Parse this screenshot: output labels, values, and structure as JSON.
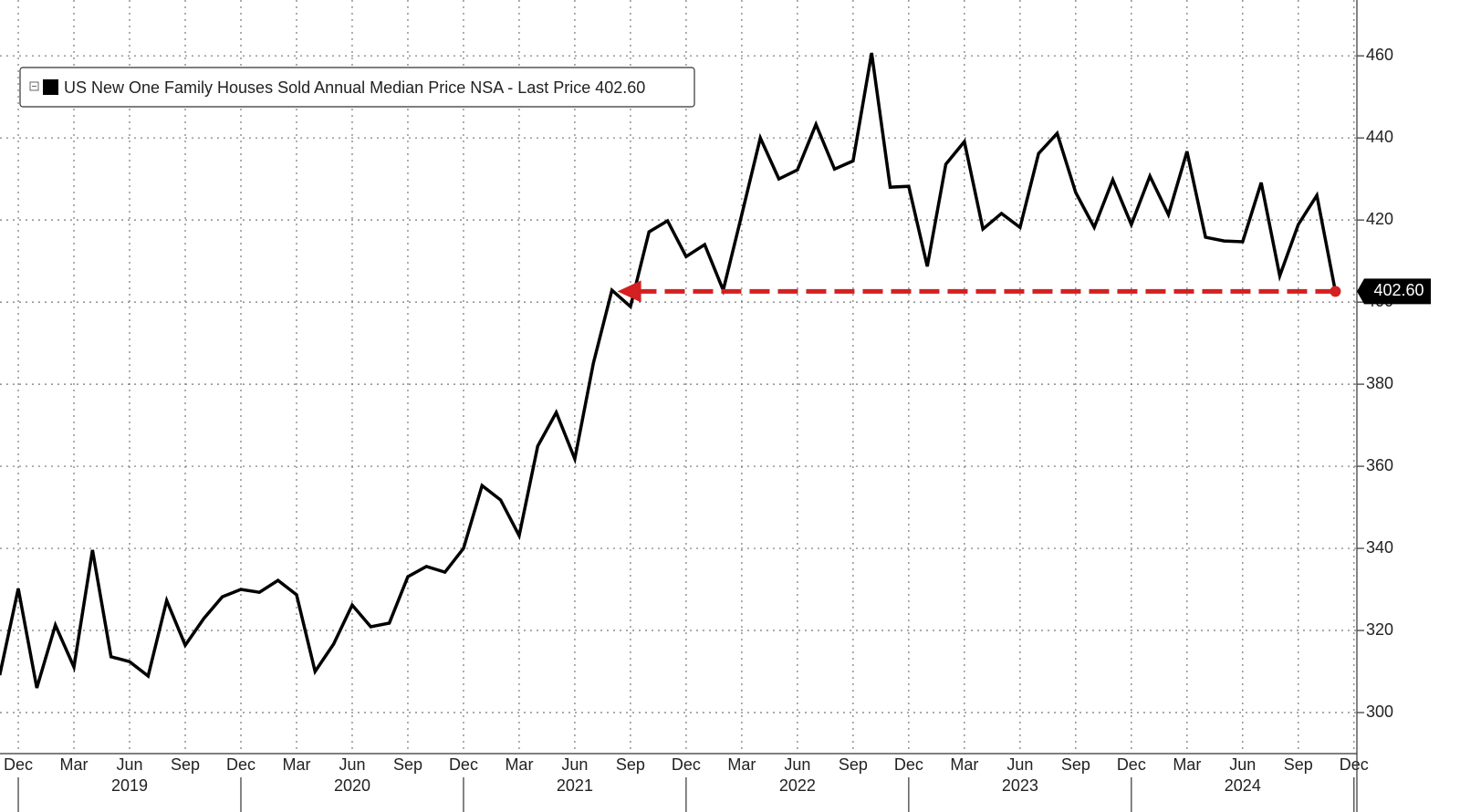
{
  "chart_data": {
    "type": "line",
    "categories": [
      null,
      "Dec",
      null,
      null,
      "Mar",
      null,
      null,
      "Jun",
      null,
      null,
      "Sep",
      null,
      null,
      "Dec",
      null,
      null,
      "Mar",
      null,
      null,
      "Jun",
      null,
      null,
      "Sep",
      null,
      null,
      "Dec",
      null,
      null,
      "Mar",
      null,
      null,
      "Jun",
      null,
      null,
      "Sep",
      null,
      null,
      "Dec",
      null,
      null,
      "Mar",
      null,
      null,
      "Jun",
      null,
      null,
      "Sep",
      null,
      null,
      "Dec",
      null,
      null,
      "Mar",
      null,
      null,
      "Jun",
      null,
      null,
      "Sep",
      null,
      null,
      "Dec",
      null,
      null,
      "Mar",
      null,
      null,
      "Jun",
      null,
      null,
      "Sep",
      null,
      null,
      "Dec"
    ],
    "year_labels": [
      "2019",
      "2020",
      "2021",
      "2022",
      "2023",
      "2024"
    ],
    "series": [
      {
        "name": "US New One Family Houses Sold Annual Median Price NSA - Last Price 402.60",
        "color": "#000000",
        "values": [
          309.1,
          330.2,
          306.0,
          321.3,
          311.1,
          339.6,
          313.6,
          312.4,
          308.9,
          327.3,
          316.4,
          322.9,
          328.2,
          330.0,
          329.3,
          332.2,
          328.7,
          310.0,
          316.7,
          326.2,
          320.9,
          321.8,
          333.1,
          335.6,
          334.2,
          340.0,
          355.3,
          351.8,
          343.1,
          364.9,
          373.1,
          361.8,
          385.1,
          402.9,
          398.9,
          417.1,
          419.8,
          411.1,
          414.0,
          402.9,
          421.3,
          440.0,
          430.0,
          432.2,
          443.3,
          432.4,
          434.4,
          460.7,
          428.0,
          428.2,
          408.7,
          433.6,
          439.1,
          417.8,
          421.6,
          418.2,
          436.2,
          441.1,
          426.7,
          418.2,
          429.8,
          418.9,
          430.7,
          421.3,
          436.7,
          415.8,
          414.9,
          414.7,
          429.1,
          406.4,
          418.9,
          426.0,
          402.6,
          null
        ],
        "value_labels": [
          null,
          null,
          null,
          null,
          null,
          null,
          null,
          null,
          null,
          null,
          null,
          null,
          null,
          null,
          null,
          null,
          null,
          null,
          null,
          null,
          null,
          null,
          null,
          null,
          null,
          null,
          null,
          null,
          null,
          null,
          null,
          null,
          null,
          null,
          null,
          null,
          null,
          null,
          null,
          null,
          null,
          null,
          null,
          null,
          null,
          null,
          null,
          null,
          null,
          null,
          null,
          null,
          null,
          null,
          null,
          null,
          null,
          null,
          null,
          null,
          null,
          null,
          null,
          null,
          null,
          null,
          null,
          null,
          null,
          null,
          null,
          null,
          "402.60",
          null
        ]
      }
    ],
    "ylim": [
      290,
      473.6
    ],
    "yticks": [
      300,
      320,
      340,
      360,
      380,
      400,
      420,
      440,
      460
    ],
    "y_axis_side": "right",
    "grid": true,
    "legend": "top-left",
    "annotation_color": "#d42020"
  }
}
